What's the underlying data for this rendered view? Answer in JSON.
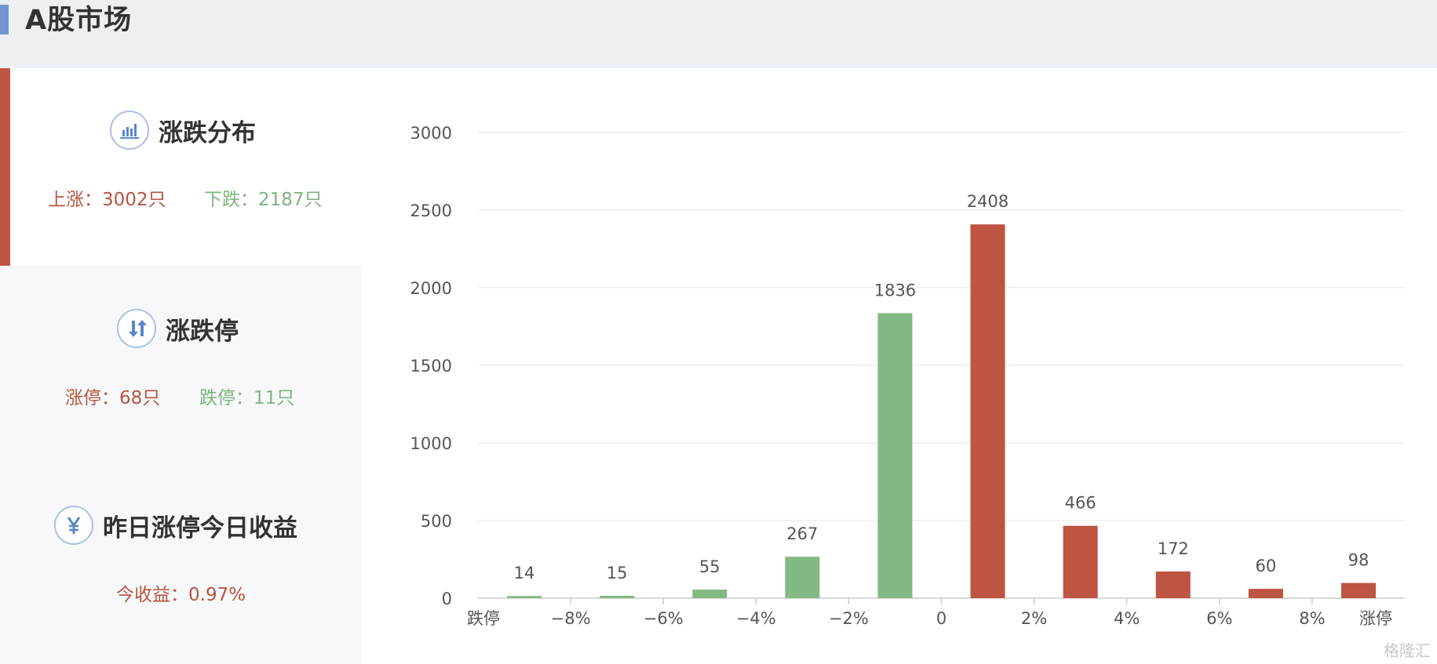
{
  "header": {
    "title": "A股市场"
  },
  "rise_fall": {
    "title": "涨跌分布",
    "icon": "bar-chart-icon",
    "up_label": "上涨：",
    "up_value": "3002只",
    "down_label": "下跌：",
    "down_value": "2187只"
  },
  "limit": {
    "title": "涨跌停",
    "icon": "up-down-arrows-icon",
    "up_label": "涨停：",
    "up_value": "68只",
    "down_label": "跌停：",
    "down_value": "11只"
  },
  "yield": {
    "title": "昨日涨停今日收益",
    "icon": "yen-icon",
    "label": "今收益：",
    "value": "0.97%"
  },
  "colors": {
    "rise": "#bd5542",
    "fall": "#83b982",
    "accent": "#6f96cf"
  },
  "chart_data": {
    "type": "bar",
    "categories": [
      "跌停",
      "−8%",
      "−6%",
      "−4%",
      "−2%",
      "0",
      "2%",
      "4%",
      "6%",
      "8%",
      "涨停"
    ],
    "bars": [
      {
        "value": 14,
        "label": "14",
        "color": "fall"
      },
      {
        "value": 15,
        "label": "15",
        "color": "fall"
      },
      {
        "value": 55,
        "label": "55",
        "color": "fall"
      },
      {
        "value": 267,
        "label": "267",
        "color": "fall"
      },
      {
        "value": 1836,
        "label": "1836",
        "color": "fall"
      },
      {
        "value": 2408,
        "label": "2408",
        "color": "rise"
      },
      {
        "value": 466,
        "label": "466",
        "color": "rise"
      },
      {
        "value": 172,
        "label": "172",
        "color": "rise"
      },
      {
        "value": 60,
        "label": "60",
        "color": "rise"
      },
      {
        "value": 98,
        "label": "98",
        "color": "rise"
      }
    ],
    "yticks": [
      0,
      500,
      1000,
      1500,
      2000,
      2500,
      3000
    ],
    "ylim": [
      0,
      3000
    ],
    "grid": true
  },
  "watermark": "格隆汇"
}
